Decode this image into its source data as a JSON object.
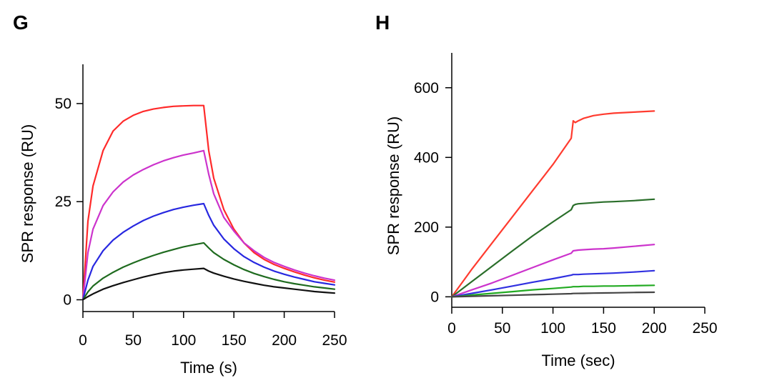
{
  "panels": [
    {
      "letter": "G"
    },
    {
      "letter": "H"
    }
  ],
  "chart_data": [
    {
      "type": "line",
      "title": "",
      "xlabel": "Time (s)",
      "ylabel": "SPR response (RU)",
      "xlim": [
        0,
        250
      ],
      "ylim": [
        -3,
        60
      ],
      "xticks": [
        0,
        50,
        100,
        150,
        200,
        250
      ],
      "yticks": [
        0,
        25,
        50
      ],
      "grid": false,
      "series": [
        {
          "color": "#ff2a2a",
          "x": [
            0,
            5,
            10,
            20,
            30,
            40,
            50,
            60,
            70,
            80,
            90,
            100,
            110,
            120,
            125,
            130,
            140,
            150,
            160,
            170,
            180,
            190,
            200,
            210,
            220,
            230,
            240,
            250
          ],
          "y": [
            0,
            20,
            29,
            38,
            43,
            45.5,
            47,
            48,
            48.6,
            49,
            49.3,
            49.4,
            49.5,
            49.5,
            38,
            31,
            23,
            18,
            14.5,
            12,
            10.3,
            9,
            8,
            7.1,
            6.3,
            5.6,
            5,
            4.5
          ]
        },
        {
          "color": "#cc33cc",
          "x": [
            0,
            5,
            10,
            20,
            30,
            40,
            50,
            60,
            70,
            80,
            90,
            100,
            110,
            120,
            125,
            130,
            140,
            150,
            160,
            170,
            180,
            190,
            200,
            210,
            220,
            230,
            240,
            250
          ],
          "y": [
            0,
            12,
            18,
            24,
            27.5,
            30,
            31.8,
            33.2,
            34.4,
            35.4,
            36.2,
            36.9,
            37.4,
            38,
            32,
            27,
            21,
            17.5,
            14.5,
            12.5,
            10.8,
            9.5,
            8.5,
            7.6,
            6.8,
            6.1,
            5.5,
            5
          ]
        },
        {
          "color": "#2828e0",
          "x": [
            0,
            5,
            10,
            20,
            30,
            40,
            50,
            60,
            70,
            80,
            90,
            100,
            110,
            120,
            125,
            130,
            140,
            150,
            160,
            170,
            180,
            190,
            200,
            210,
            220,
            230,
            240,
            250
          ],
          "y": [
            0,
            5,
            8.5,
            12.5,
            15.2,
            17.2,
            18.8,
            20.2,
            21.3,
            22.2,
            23,
            23.6,
            24.1,
            24.5,
            21.5,
            19,
            15.5,
            13,
            11,
            9.5,
            8.3,
            7.3,
            6.5,
            5.8,
            5.2,
            4.6,
            4.2,
            3.8
          ]
        },
        {
          "color": "#1f6b1f",
          "x": [
            0,
            5,
            10,
            20,
            30,
            40,
            50,
            60,
            70,
            80,
            90,
            100,
            110,
            120,
            125,
            130,
            140,
            150,
            160,
            170,
            180,
            190,
            200,
            210,
            220,
            230,
            240,
            250
          ],
          "y": [
            0,
            2,
            3.5,
            5.5,
            7,
            8.3,
            9.4,
            10.4,
            11.3,
            12.1,
            12.8,
            13.5,
            14,
            14.5,
            13.2,
            12,
            10.3,
            8.9,
            7.7,
            6.7,
            5.9,
            5.2,
            4.6,
            4.1,
            3.7,
            3.3,
            3,
            2.7
          ]
        },
        {
          "color": "#111111",
          "x": [
            0,
            5,
            10,
            20,
            30,
            40,
            50,
            60,
            70,
            80,
            90,
            100,
            110,
            120,
            125,
            130,
            140,
            150,
            160,
            170,
            180,
            190,
            200,
            210,
            220,
            230,
            240,
            250
          ],
          "y": [
            0,
            0.8,
            1.5,
            2.7,
            3.6,
            4.4,
            5.1,
            5.8,
            6.4,
            6.9,
            7.3,
            7.6,
            7.8,
            8,
            7.3,
            6.8,
            6,
            5.3,
            4.7,
            4.2,
            3.7,
            3.3,
            3,
            2.7,
            2.4,
            2.1,
            1.9,
            1.7
          ]
        }
      ]
    },
    {
      "type": "line",
      "title": "",
      "xlabel": "Time (sec)",
      "ylabel": "SPR response (RU)",
      "xlim": [
        0,
        250
      ],
      "ylim": [
        -30,
        700
      ],
      "xticks": [
        0,
        50,
        100,
        150,
        200,
        250
      ],
      "yticks": [
        0,
        200,
        400,
        600
      ],
      "grid": false,
      "series": [
        {
          "color": "#ff3b2f",
          "x": [
            0,
            10,
            20,
            40,
            60,
            80,
            100,
            118,
            120,
            122,
            125,
            130,
            140,
            150,
            160,
            180,
            200
          ],
          "y": [
            0,
            40,
            80,
            155,
            230,
            305,
            380,
            455,
            505,
            500,
            505,
            512,
            520,
            524,
            527,
            530,
            533
          ]
        },
        {
          "color": "#2a6e2a",
          "x": [
            0,
            10,
            20,
            40,
            60,
            80,
            100,
            118,
            120,
            122,
            125,
            130,
            140,
            150,
            160,
            180,
            200
          ],
          "y": [
            0,
            22,
            44,
            88,
            132,
            175,
            215,
            250,
            262,
            265,
            267,
            268,
            270,
            272,
            273,
            276,
            280
          ]
        },
        {
          "color": "#cc33cc",
          "x": [
            0,
            10,
            20,
            40,
            60,
            80,
            100,
            118,
            120,
            125,
            130,
            140,
            150,
            160,
            180,
            200
          ],
          "y": [
            0,
            10,
            20,
            40,
            62,
            84,
            106,
            125,
            132,
            134,
            135,
            137,
            138,
            140,
            145,
            150
          ]
        },
        {
          "color": "#3030e0",
          "x": [
            0,
            10,
            20,
            40,
            60,
            80,
            100,
            118,
            120,
            125,
            130,
            140,
            150,
            160,
            180,
            200
          ],
          "y": [
            0,
            5,
            10,
            20,
            31,
            42,
            52,
            62,
            64,
            64,
            65,
            66,
            67,
            68,
            71,
            75
          ]
        },
        {
          "color": "#22aa22",
          "x": [
            0,
            10,
            20,
            40,
            60,
            80,
            100,
            118,
            120,
            125,
            130,
            140,
            150,
            160,
            180,
            200
          ],
          "y": [
            0,
            2,
            5,
            10,
            15,
            20,
            24,
            28,
            29,
            29,
            30,
            30,
            31,
            31,
            32,
            33
          ]
        },
        {
          "color": "#444444",
          "x": [
            0,
            10,
            20,
            40,
            60,
            80,
            100,
            118,
            120,
            130,
            140,
            150,
            160,
            180,
            200
          ],
          "y": [
            0,
            0.8,
            1.5,
            3,
            4.5,
            6,
            7.5,
            9,
            9.5,
            10,
            10.5,
            11,
            11.5,
            12.5,
            13
          ]
        }
      ]
    }
  ]
}
